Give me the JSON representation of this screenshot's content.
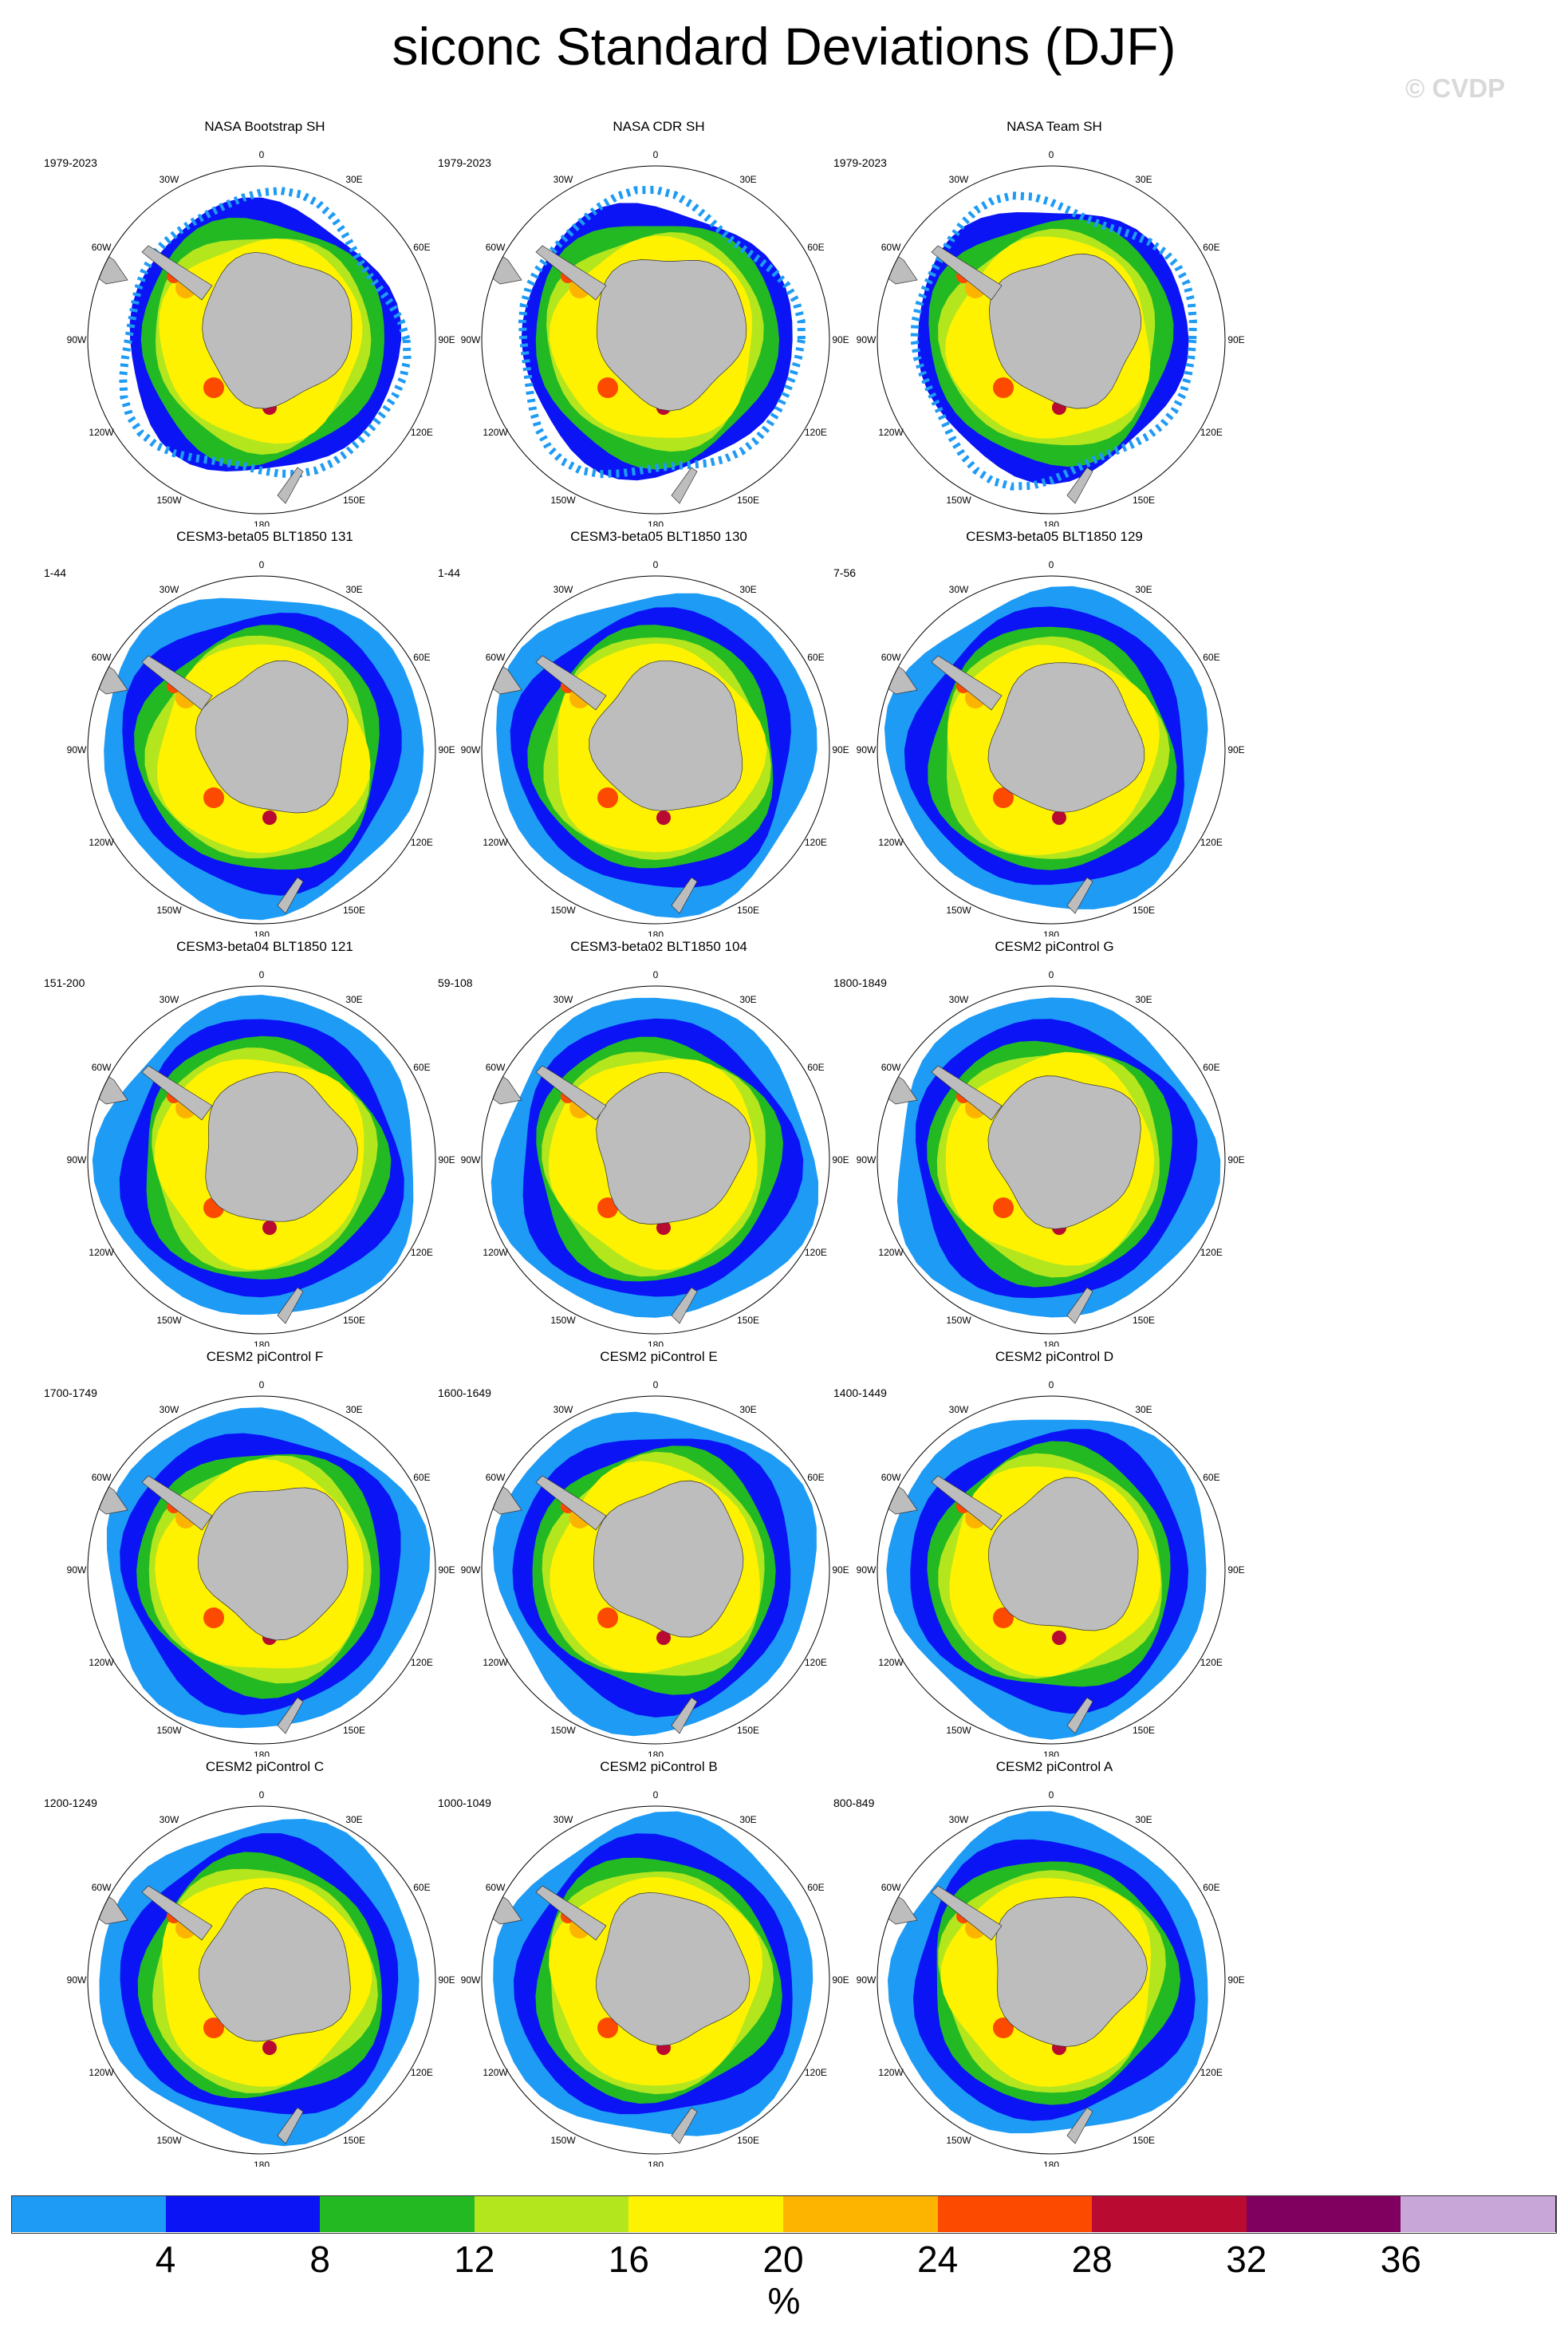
{
  "title": "siconc Standard Deviations (DJF)",
  "credit": "© CVDP",
  "longitude_labels": [
    "0",
    "30E",
    "60E",
    "90E",
    "120E",
    "150E",
    "180",
    "150W",
    "120W",
    "90W",
    "60W",
    "30W"
  ],
  "panels": [
    {
      "title": "NASA Bootstrap SH",
      "period": "1979-2023",
      "kind": "obs"
    },
    {
      "title": "NASA CDR SH",
      "period": "1979-2023",
      "kind": "obs"
    },
    {
      "title": "NASA Team SH",
      "period": "1979-2023",
      "kind": "obs"
    },
    {
      "title": "CESM3-beta05 BLT1850 131",
      "period": "1-44",
      "kind": "model"
    },
    {
      "title": "CESM3-beta05 BLT1850 130",
      "period": "1-44",
      "kind": "model"
    },
    {
      "title": "CESM3-beta05 BLT1850 129",
      "period": "7-56",
      "kind": "model"
    },
    {
      "title": "CESM3-beta04 BLT1850 121",
      "period": "151-200",
      "kind": "model"
    },
    {
      "title": "CESM3-beta02 BLT1850 104",
      "period": "59-108",
      "kind": "model"
    },
    {
      "title": "CESM2 piControl G",
      "period": "1800-1849",
      "kind": "model"
    },
    {
      "title": "CESM2 piControl F",
      "period": "1700-1749",
      "kind": "model"
    },
    {
      "title": "CESM2 piControl E",
      "period": "1600-1649",
      "kind": "model"
    },
    {
      "title": "CESM2 piControl D",
      "period": "1400-1449",
      "kind": "model"
    },
    {
      "title": "CESM2 piControl C",
      "period": "1200-1249",
      "kind": "model"
    },
    {
      "title": "CESM2 piControl B",
      "period": "1000-1049",
      "kind": "model"
    },
    {
      "title": "CESM2 piControl A",
      "period": "800-849",
      "kind": "model"
    }
  ],
  "colorbar": {
    "colors": [
      "#1e9bf5",
      "#0a14f5",
      "#23b923",
      "#b4e61e",
      "#fff200",
      "#fcb400",
      "#fc4a00",
      "#b90a32",
      "#800060",
      "#c8a6d8"
    ],
    "tick_labels": [
      "4",
      "8",
      "12",
      "16",
      "20",
      "24",
      "28",
      "32",
      "36"
    ],
    "units": "%"
  },
  "land_color": "#bdbdbd"
}
